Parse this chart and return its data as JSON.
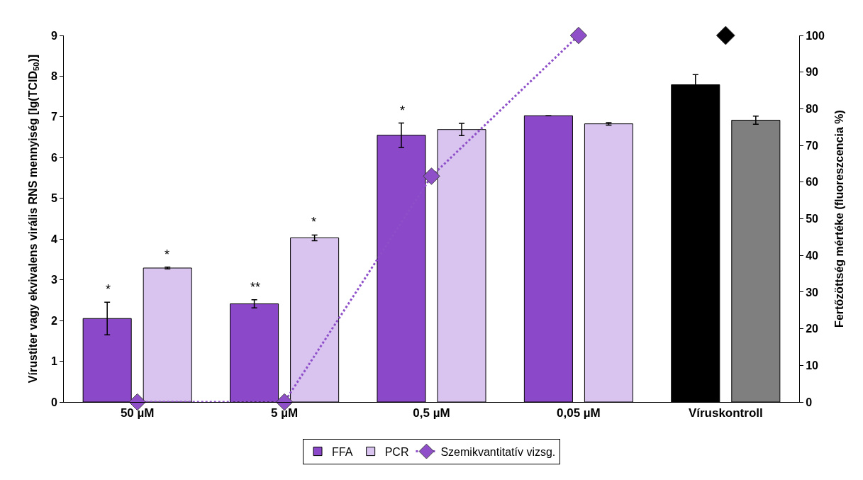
{
  "chart_data": {
    "type": "bar",
    "categories": [
      "50 µM",
      "5 µM",
      "0,5 µM",
      "0,05 µM",
      "Víruskontroll"
    ],
    "ylabel": "Vírustiter vagy ekvivalens virális RNS mennyiség [lg(TCID$_{50}$)]",
    "y2label": "Fertőzöttség mértéke (fluoreszcencia %)",
    "ylim": [
      0,
      9
    ],
    "yticks": [
      0,
      1,
      2,
      3,
      4,
      5,
      6,
      7,
      8,
      9
    ],
    "y2lim": [
      0,
      100
    ],
    "y2ticks": [
      0,
      10,
      20,
      30,
      40,
      50,
      60,
      70,
      80,
      90,
      100
    ],
    "legend": "bottom",
    "series": [
      {
        "name": "FFA",
        "colors": [
          "#8b48c8",
          "#8b48c8",
          "#8b48c8",
          "#8b48c8",
          "#000000"
        ],
        "values": [
          2.05,
          2.41,
          6.55,
          7.03,
          7.79
        ],
        "errors": [
          0.4,
          0.1,
          0.3,
          null,
          0.25
        ],
        "value_labels": [
          "*",
          "**",
          "*",
          null,
          null
        ]
      },
      {
        "name": "PCR",
        "colors": [
          "#d8c4ef",
          "#d8c4ef",
          "#d8c4ef",
          "#d8c4ef",
          "#7f7f7f"
        ],
        "values": [
          3.29,
          4.03,
          6.69,
          6.83,
          6.92
        ],
        "errors": [
          0.02,
          0.07,
          0.15,
          0.03,
          0.1
        ],
        "value_labels": [
          "*",
          "*",
          null,
          null,
          null
        ]
      },
      {
        "name": "Szemikvantitatív vizsg.",
        "type": "line",
        "axis": "y2",
        "color": "#8e4fc9",
        "marker": "diamond",
        "line_style": "dotted",
        "values": [
          0,
          0,
          61.6,
          100,
          null
        ]
      },
      {
        "type": "scatter",
        "axis": "y2",
        "color": "#000000",
        "marker": "diamond",
        "values": [
          null,
          null,
          null,
          null,
          100
        ]
      }
    ]
  }
}
